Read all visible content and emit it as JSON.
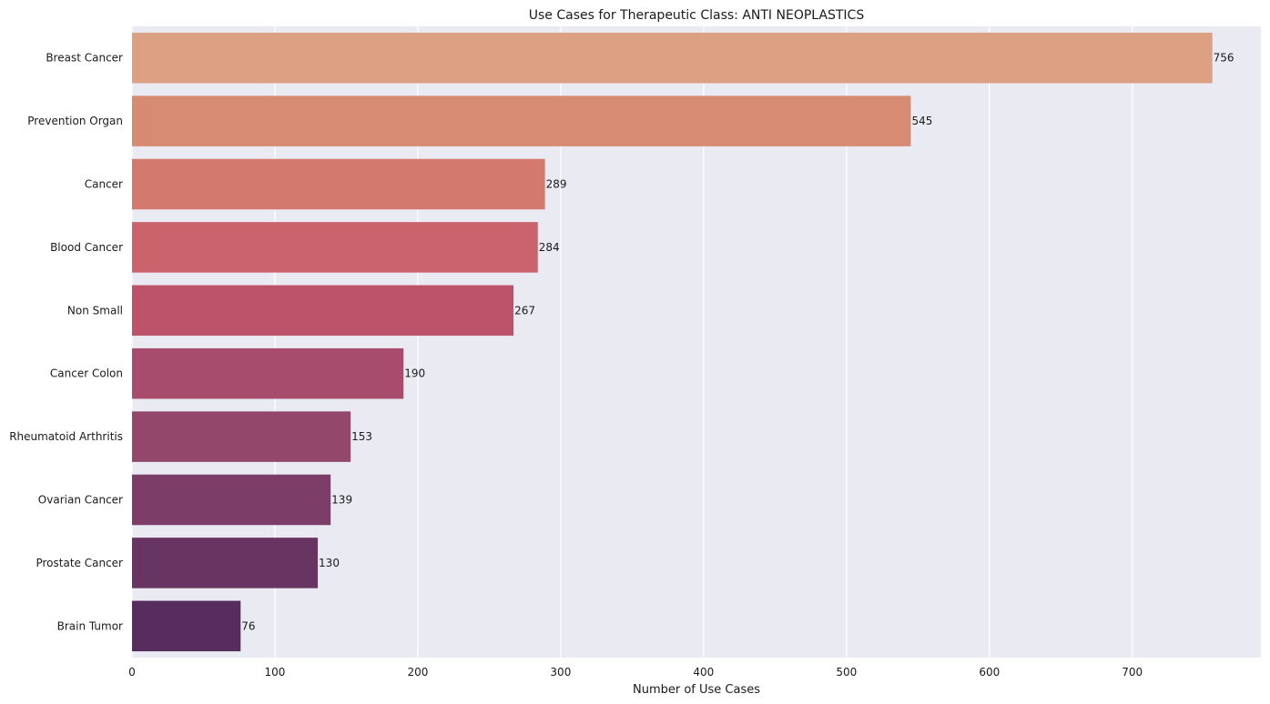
{
  "chart_data": {
    "type": "bar",
    "orientation": "horizontal",
    "title": "Use Cases for Therapeutic Class: ANTI NEOPLASTICS",
    "xlabel": "Number of Use Cases",
    "ylabel": "",
    "xlim": [
      0,
      790
    ],
    "xticks": [
      0,
      100,
      200,
      300,
      400,
      500,
      600,
      700
    ],
    "grid": true,
    "background": "#eaeaf2",
    "categories": [
      "Breast Cancer",
      "Prevention Organ",
      "Cancer",
      "Blood Cancer",
      "Non Small",
      "Cancer Colon",
      "Rheumatoid Arthritis",
      "Ovarian Cancer",
      "Prostate Cancer",
      "Brain Tumor"
    ],
    "values": [
      756,
      545,
      289,
      284,
      267,
      190,
      153,
      139,
      130,
      76
    ],
    "colors": [
      "#dca083",
      "#d78b72",
      "#d3796d",
      "#cb636d",
      "#bc536a",
      "#a74c6c",
      "#92476b",
      "#7c3d69",
      "#683562",
      "#572d5e"
    ]
  }
}
